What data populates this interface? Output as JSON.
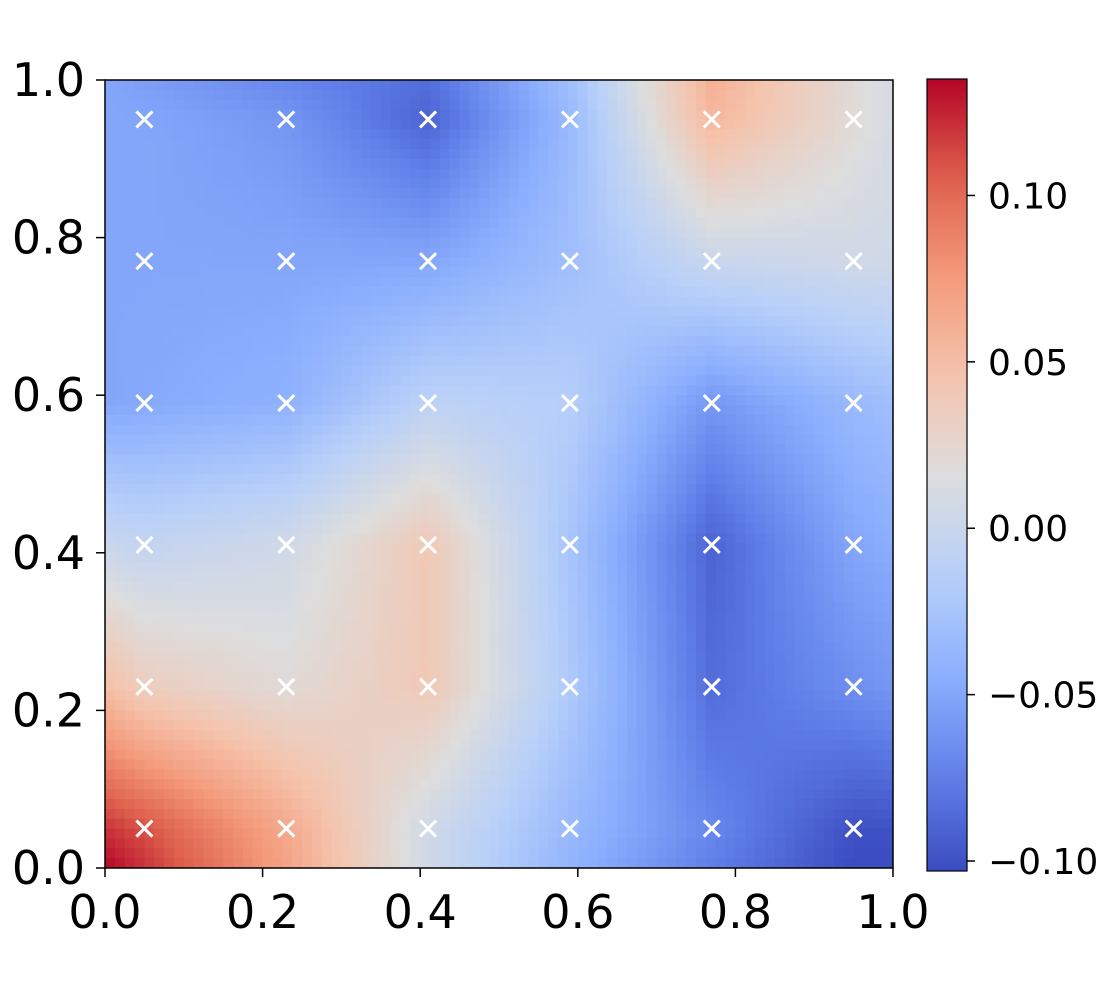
{
  "chart_data": {
    "type": "heatmap",
    "title": "",
    "xlabel": "",
    "ylabel": "",
    "xlim": [
      0.0,
      1.0
    ],
    "ylim": [
      0.0,
      1.0
    ],
    "x_ticks": [
      "0.0",
      "0.2",
      "0.4",
      "0.6",
      "0.8",
      "1.0"
    ],
    "y_ticks": [
      "0.0",
      "0.2",
      "0.4",
      "0.6",
      "0.8",
      "1.0"
    ],
    "colormap": "coolwarm",
    "colorbar": {
      "vmin": -0.103,
      "vmax": 0.135,
      "ticks": [
        {
          "value": 0.1,
          "label": "0.10"
        },
        {
          "value": 0.05,
          "label": "0.05"
        },
        {
          "value": 0.0,
          "label": "0.00"
        },
        {
          "value": -0.05,
          "label": "−0.05"
        },
        {
          "value": -0.1,
          "label": "−0.10"
        }
      ]
    },
    "grid_axis_values": [
      0.05,
      0.23,
      0.41,
      0.59,
      0.77,
      0.95
    ],
    "field_values_grid": {
      "y_top_to_bottom": [
        1.0,
        0.95,
        0.77,
        0.59,
        0.41,
        0.23,
        0.05,
        0.0
      ],
      "x_left_to_right": [
        0.0,
        0.05,
        0.23,
        0.41,
        0.59,
        0.77,
        0.95,
        1.0
      ],
      "rows": [
        [
          -0.05,
          -0.055,
          -0.07,
          -0.085,
          -0.03,
          0.06,
          0.02,
          0.01
        ],
        [
          -0.05,
          -0.05,
          -0.06,
          -0.09,
          -0.035,
          0.055,
          0.02,
          0.01
        ],
        [
          -0.05,
          -0.05,
          -0.05,
          -0.05,
          -0.03,
          0.0,
          0.005,
          0.005
        ],
        [
          -0.05,
          -0.048,
          -0.042,
          -0.01,
          -0.015,
          -0.06,
          -0.035,
          -0.03
        ],
        [
          0.0,
          -0.005,
          0.005,
          0.04,
          -0.025,
          -0.09,
          -0.05,
          -0.045
        ],
        [
          0.05,
          0.035,
          0.02,
          0.04,
          -0.02,
          -0.085,
          -0.065,
          -0.06
        ],
        [
          0.12,
          0.11,
          0.065,
          0.005,
          -0.035,
          -0.07,
          -0.1,
          -0.1
        ],
        [
          0.135,
          0.12,
          0.07,
          0.005,
          -0.04,
          -0.075,
          -0.103,
          -0.103
        ]
      ]
    },
    "markers": {
      "symbol": "x",
      "color": "#ffffff",
      "points": [
        [
          0.05,
          0.95
        ],
        [
          0.23,
          0.95
        ],
        [
          0.41,
          0.95
        ],
        [
          0.59,
          0.95
        ],
        [
          0.77,
          0.95
        ],
        [
          0.95,
          0.95
        ],
        [
          0.05,
          0.77
        ],
        [
          0.23,
          0.77
        ],
        [
          0.41,
          0.77
        ],
        [
          0.59,
          0.77
        ],
        [
          0.77,
          0.77
        ],
        [
          0.95,
          0.77
        ],
        [
          0.05,
          0.59
        ],
        [
          0.23,
          0.59
        ],
        [
          0.41,
          0.59
        ],
        [
          0.59,
          0.59
        ],
        [
          0.77,
          0.59
        ],
        [
          0.95,
          0.59
        ],
        [
          0.05,
          0.41
        ],
        [
          0.23,
          0.41
        ],
        [
          0.41,
          0.41
        ],
        [
          0.59,
          0.41
        ],
        [
          0.77,
          0.41
        ],
        [
          0.95,
          0.41
        ],
        [
          0.05,
          0.23
        ],
        [
          0.23,
          0.23
        ],
        [
          0.41,
          0.23
        ],
        [
          0.59,
          0.23
        ],
        [
          0.77,
          0.23
        ],
        [
          0.95,
          0.23
        ],
        [
          0.05,
          0.05
        ],
        [
          0.23,
          0.05
        ],
        [
          0.41,
          0.05
        ],
        [
          0.59,
          0.05
        ],
        [
          0.77,
          0.05
        ],
        [
          0.95,
          0.05
        ]
      ]
    },
    "grid": false,
    "legend": "none"
  }
}
